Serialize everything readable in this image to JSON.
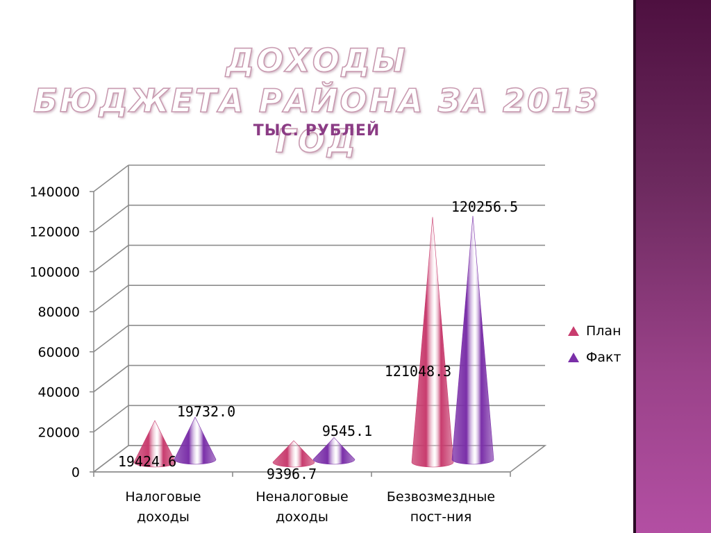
{
  "slide": {
    "title_line1": "ДОХОДЫ",
    "title_line2": "БЮДЖЕТА РАЙОНА ЗА 2013 ГОД",
    "subtitle": "ТЫС. РУБЛЕЙ"
  },
  "colors": {
    "plan": "#c83c6e",
    "fact": "#7a2fa8",
    "accent": "#8b3c85",
    "band": "#6d2a5f"
  },
  "chart_data": {
    "type": "bar",
    "shape": "cone-3d",
    "categories": [
      "Налоговые доходы",
      "Неналоговые доходы",
      "Безвозмездные пост-ния"
    ],
    "category_lines": [
      [
        "Налоговые",
        "доходы"
      ],
      [
        "Неналоговые",
        "доходы"
      ],
      [
        "Безвозмездные",
        "пост-ния"
      ]
    ],
    "series": [
      {
        "name": "План",
        "values": [
          19424.6,
          9396.7,
          121048.3
        ],
        "labels": [
          "19424.6",
          "9396.7",
          "121048.3"
        ]
      },
      {
        "name": "Факт",
        "values": [
          19732.0,
          9545.1,
          120256.5
        ],
        "labels": [
          "19732.0",
          "9545.1",
          "120256.5"
        ]
      }
    ],
    "ylim": [
      0,
      140000
    ],
    "yticks": [
      "0",
      "20000",
      "40000",
      "60000",
      "80000",
      "100000",
      "120000",
      "140000"
    ],
    "grid": true,
    "legend": "right"
  }
}
